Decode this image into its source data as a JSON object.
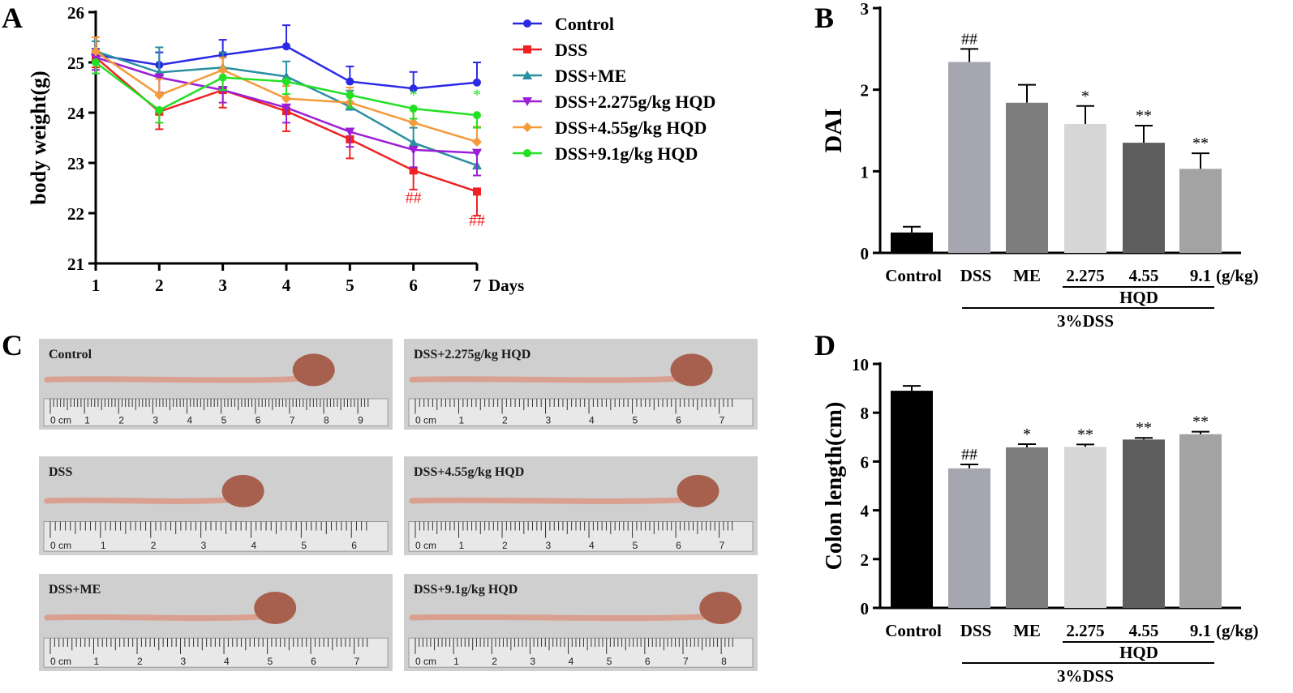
{
  "panels": {
    "a": {
      "letter": "A"
    },
    "b": {
      "letter": "B"
    },
    "c": {
      "letter": "C"
    },
    "d": {
      "letter": "D"
    }
  },
  "chart_data": [
    {
      "id": "A",
      "type": "line",
      "title": "",
      "xlabel": "Days",
      "ylabel": "body weight(g)",
      "x": [
        1,
        2,
        3,
        4,
        5,
        6,
        7
      ],
      "xlim": [
        1,
        7
      ],
      "ylim": [
        21,
        26
      ],
      "yticks": [
        21,
        22,
        23,
        24,
        25,
        26
      ],
      "legend_position": "top-right",
      "series": [
        {
          "name": "Control",
          "color": "#2a2ae6",
          "marker": "circle",
          "values": [
            25.15,
            24.95,
            25.15,
            25.32,
            24.62,
            24.48,
            24.6
          ],
          "errors": [
            0.12,
            0.25,
            0.3,
            0.42,
            0.3,
            0.33,
            0.4
          ]
        },
        {
          "name": "DSS",
          "color": "#ee2222",
          "marker": "square",
          "values": [
            25.1,
            24.02,
            24.45,
            24.03,
            23.47,
            22.85,
            22.43
          ],
          "errors": [
            0.2,
            0.35,
            0.35,
            0.4,
            0.38,
            0.38,
            0.48
          ]
        },
        {
          "name": "DSS+ME",
          "color": "#2a8fa0",
          "marker": "triangle",
          "values": [
            25.22,
            24.8,
            24.9,
            24.72,
            24.12,
            23.4,
            22.95
          ],
          "errors": [
            0.2,
            0.5,
            0.3,
            0.3,
            0.32,
            0.3,
            0.3
          ]
        },
        {
          "name": "DSS+2.275g/kg HQD",
          "color": "#9a1fd6",
          "marker": "triangle-down",
          "values": [
            25.1,
            24.7,
            24.45,
            24.1,
            23.62,
            23.26,
            23.2
          ],
          "errors": [
            0.25,
            0.3,
            0.25,
            0.3,
            0.3,
            0.35,
            0.45
          ]
        },
        {
          "name": "DSS+4.55g/kg HQD",
          "color": "#f59a3a",
          "marker": "diamond",
          "values": [
            25.22,
            24.35,
            24.85,
            24.28,
            24.2,
            23.8,
            23.42
          ],
          "errors": [
            0.28,
            0.32,
            0.25,
            0.25,
            0.3,
            0.3,
            0.3
          ]
        },
        {
          "name": "DSS+9.1g/kg HQD",
          "color": "#22e022",
          "marker": "circle",
          "values": [
            25.0,
            24.05,
            24.7,
            24.62,
            24.35,
            24.08,
            23.95
          ],
          "errors": [
            0.22,
            0.25,
            0.25,
            0.25,
            0.25,
            0.2,
            0.25
          ]
        }
      ],
      "annotations": [
        {
          "text": "##",
          "x": 6,
          "y": 22.2,
          "color": "#ee2222"
        },
        {
          "text": "##",
          "x": 7,
          "y": 21.75,
          "color": "#ee2222"
        },
        {
          "text": "*",
          "x": 6,
          "y": 24.25,
          "color": "#22e022"
        },
        {
          "text": "*",
          "x": 7,
          "y": 24.25,
          "color": "#22e022"
        }
      ]
    },
    {
      "id": "B",
      "type": "bar",
      "ylabel": "DAI",
      "ylim": [
        0,
        3
      ],
      "yticks": [
        0,
        1,
        2,
        3
      ],
      "categories": [
        "Control",
        "DSS",
        "ME",
        "2.275",
        "4.55",
        "9.1"
      ],
      "values": [
        0.25,
        2.34,
        1.84,
        1.58,
        1.35,
        1.03
      ],
      "errors": [
        0.07,
        0.16,
        0.22,
        0.22,
        0.21,
        0.19
      ],
      "colors": [
        "#000000",
        "#a6a6b0",
        "#7d7d7d",
        "#d6d6d6",
        "#5e5e5e",
        "#a3a3a3"
      ],
      "significance": [
        "",
        "##",
        "",
        "*",
        "**",
        "**"
      ],
      "unit_label": "(g/kg)",
      "group_label_hqd": "HQD",
      "group_label_dss": "3%DSS"
    },
    {
      "id": "D",
      "type": "bar",
      "ylabel": "Colon length(cm)",
      "ylim": [
        0,
        10
      ],
      "yticks": [
        0,
        2,
        4,
        6,
        8,
        10
      ],
      "categories": [
        "Control",
        "DSS",
        "ME",
        "2.275",
        "4.55",
        "9.1"
      ],
      "values": [
        8.9,
        5.72,
        6.58,
        6.6,
        6.9,
        7.12
      ],
      "errors": [
        0.2,
        0.16,
        0.13,
        0.1,
        0.07,
        0.1
      ],
      "colors": [
        "#000000",
        "#a6a6b0",
        "#7d7d7d",
        "#d6d6d6",
        "#5e5e5e",
        "#a3a3a3"
      ],
      "significance": [
        "",
        "##",
        "*",
        "**",
        "**",
        "**"
      ],
      "unit_label": "(g/kg)",
      "group_label_hqd": "HQD",
      "group_label_dss": "3%DSS"
    }
  ],
  "photos": [
    {
      "label": "Control",
      "ruler_numbers": [
        "0 cm",
        "1",
        "2",
        "3",
        "4",
        "5",
        "6",
        "7",
        "8",
        "9"
      ]
    },
    {
      "label": "DSS",
      "ruler_numbers": [
        "0 cm",
        "1",
        "2",
        "3",
        "4",
        "5",
        "6"
      ]
    },
    {
      "label": "DSS+ME",
      "ruler_numbers": [
        "0 cm",
        "1",
        "2",
        "3",
        "4",
        "5",
        "6",
        "7"
      ]
    },
    {
      "label": "DSS+2.275g/kg HQD",
      "ruler_numbers": [
        "0 cm",
        "1",
        "2",
        "3",
        "4",
        "5",
        "6",
        "7"
      ]
    },
    {
      "label": "DSS+4.55g/kg HQD",
      "ruler_numbers": [
        "0 cm",
        "1",
        "2",
        "3",
        "4",
        "5",
        "6",
        "7"
      ]
    },
    {
      "label": "DSS+9.1g/kg HQD",
      "ruler_numbers": [
        "0 cm",
        "1",
        "2",
        "3",
        "4",
        "5",
        "6",
        "7",
        "8"
      ]
    }
  ]
}
